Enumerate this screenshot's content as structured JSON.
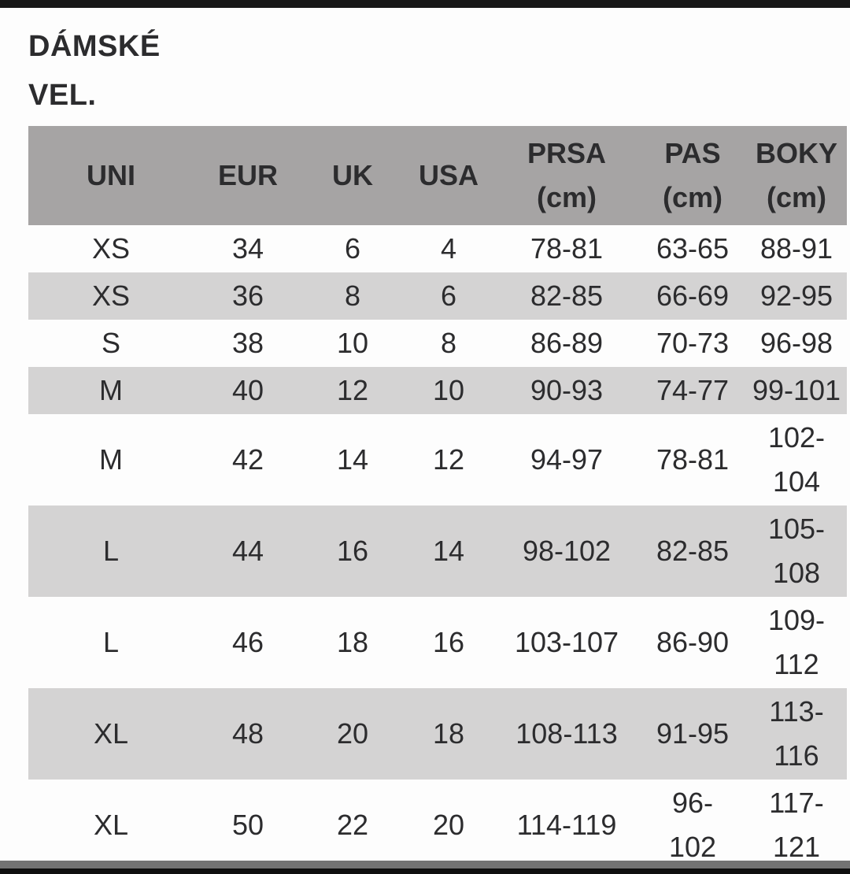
{
  "page": {
    "title": "DÁMSKÉ\nVEL."
  },
  "colors": {
    "page-bg": "#fdfdfd",
    "text": "#2c2c2e",
    "top-bar": "#181818",
    "header-bg": "#a6a4a4",
    "row-alt-bg": "#d4d3d3",
    "footer-gray": "#737373",
    "footer-black": "#0f0f0f"
  },
  "table": {
    "columns": [
      "UNI",
      "EUR",
      "UK",
      "USA",
      "PRSA\n(cm)",
      "PAS\n(cm)",
      "BOKY\n(cm)"
    ],
    "rows": [
      [
        "XS",
        "34",
        "6",
        "4",
        "78-81",
        "63-65",
        "88-91"
      ],
      [
        "XS",
        "36",
        "8",
        "6",
        "82-85",
        "66-69",
        "92-95"
      ],
      [
        "S",
        "38",
        "10",
        "8",
        "86-89",
        "70-73",
        "96-98"
      ],
      [
        "M",
        "40",
        "12",
        "10",
        "90-93",
        "74-77",
        "99-101"
      ],
      [
        "M",
        "42",
        "14",
        "12",
        "94-97",
        "78-81",
        "102-\n104"
      ],
      [
        "L",
        "44",
        "16",
        "14",
        "98-102",
        "82-85",
        "105-\n108"
      ],
      [
        "L",
        "46",
        "18",
        "16",
        "103-107",
        "86-90",
        "109-\n112"
      ],
      [
        "XL",
        "48",
        "20",
        "18",
        "108-113",
        "91-95",
        "113-\n116"
      ],
      [
        "XL",
        "50",
        "22",
        "20",
        "114-119",
        "96-\n102",
        "117-\n121"
      ]
    ]
  }
}
